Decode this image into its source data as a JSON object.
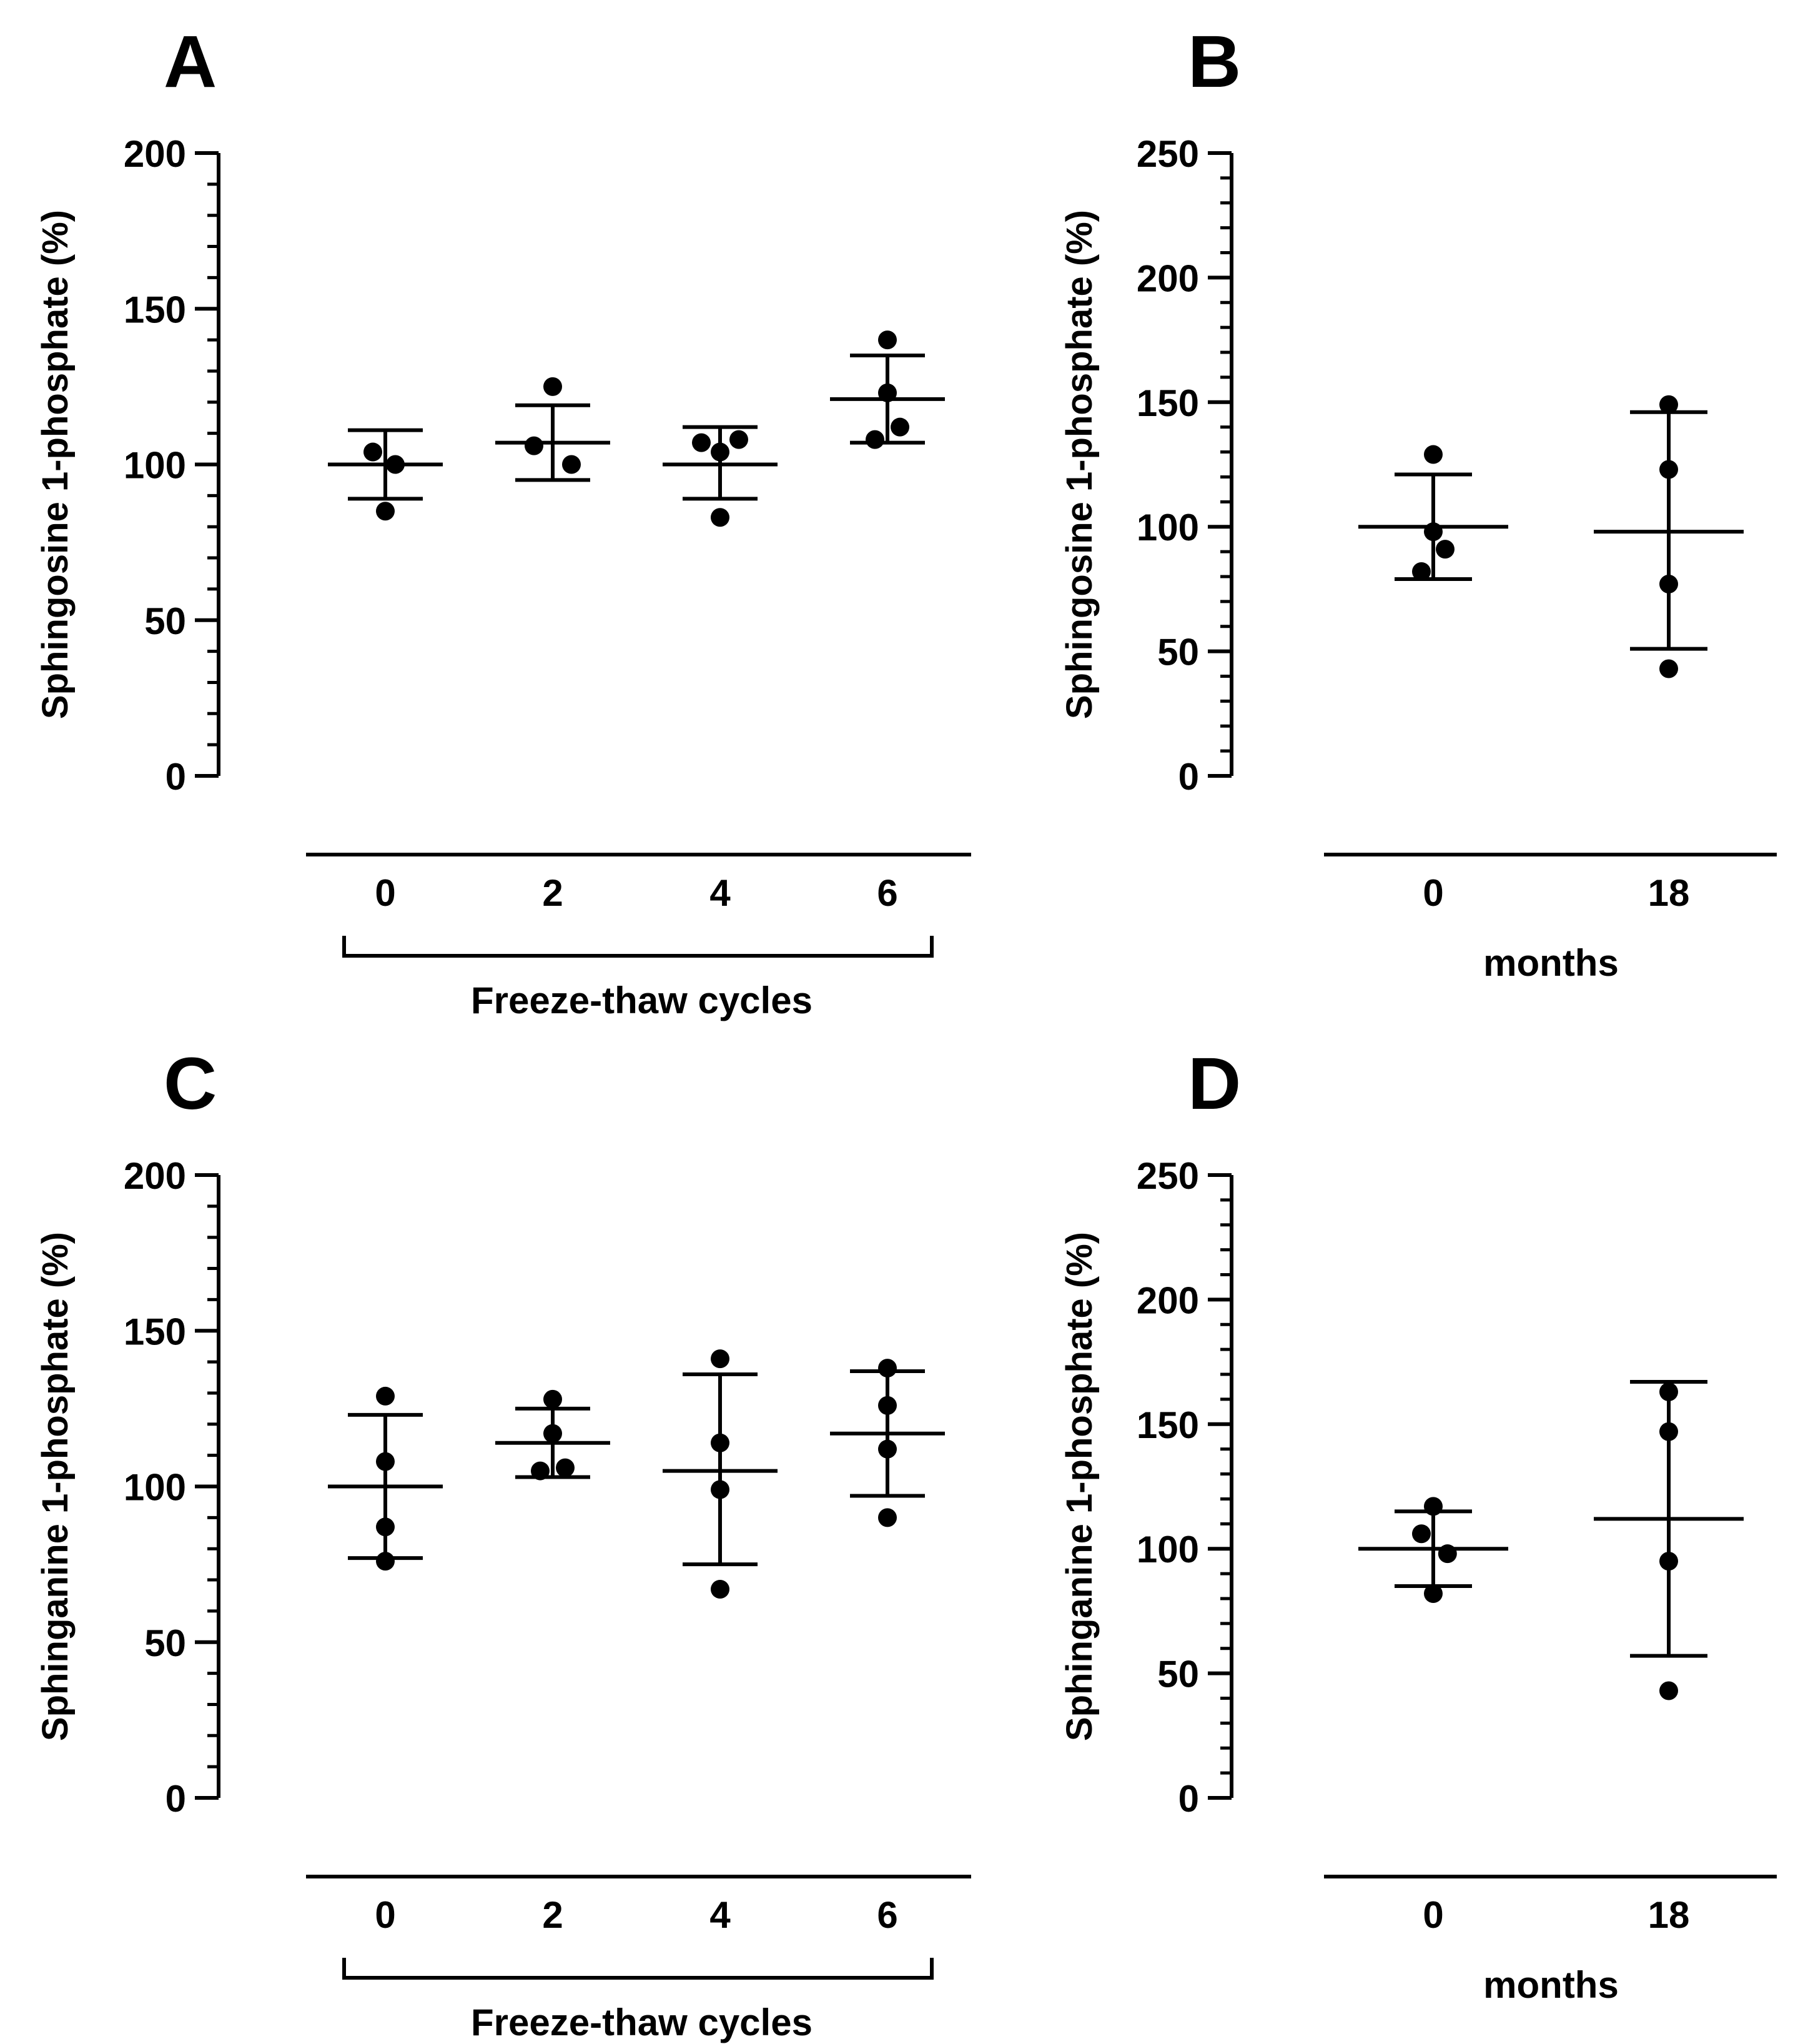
{
  "chart_data": [
    {
      "id": "A",
      "panel_label": "A",
      "type": "scatter",
      "ylabel": "Sphingosine 1-phosphate (%)",
      "xlabel": "Freeze-thaw cycles",
      "xlabel_style": "bracket",
      "ylim": [
        0,
        200
      ],
      "ymajor": [
        0,
        50,
        100,
        150,
        200
      ],
      "categories": [
        "0",
        "2",
        "4",
        "6"
      ],
      "groups": [
        {
          "mean": 100,
          "upper": 111,
          "lower": 89,
          "points": [
            [
              -0.1,
              104
            ],
            [
              0.08,
              100
            ],
            [
              0,
              85
            ]
          ]
        },
        {
          "mean": 107,
          "upper": 119,
          "lower": 95,
          "points": [
            [
              0,
              125
            ],
            [
              -0.15,
              106
            ],
            [
              0.15,
              100
            ]
          ]
        },
        {
          "mean": 100,
          "upper": 112,
          "lower": 89,
          "points": [
            [
              -0.15,
              107
            ],
            [
              0.15,
              108
            ],
            [
              0,
              104
            ],
            [
              0,
              83
            ]
          ]
        },
        {
          "mean": 121,
          "upper": 135,
          "lower": 107,
          "points": [
            [
              0,
              140
            ],
            [
              0,
              123
            ],
            [
              -0.1,
              108
            ],
            [
              0.1,
              112
            ]
          ]
        }
      ]
    },
    {
      "id": "B",
      "panel_label": "B",
      "type": "scatter",
      "ylabel": "Sphingosine 1-phosphate (%)",
      "xlabel": "months",
      "xlabel_style": "plain",
      "ylim": [
        0,
        250
      ],
      "ymajor": [
        0,
        50,
        100,
        150,
        200,
        250
      ],
      "categories": [
        "0",
        "18"
      ],
      "groups": [
        {
          "mean": 100,
          "upper": 121,
          "lower": 79,
          "points": [
            [
              0,
              129
            ],
            [
              0,
              98
            ],
            [
              0.1,
              91
            ],
            [
              -0.1,
              82
            ]
          ]
        },
        {
          "mean": 98,
          "upper": 146,
          "lower": 51,
          "points": [
            [
              0,
              149
            ],
            [
              0,
              123
            ],
            [
              0,
              77
            ],
            [
              0,
              43
            ]
          ]
        }
      ]
    },
    {
      "id": "C",
      "panel_label": "C",
      "type": "scatter",
      "ylabel": "Sphinganine 1-phosphate (%)",
      "xlabel": "Freeze-thaw cycles",
      "xlabel_style": "bracket",
      "ylim": [
        0,
        200
      ],
      "ymajor": [
        0,
        50,
        100,
        150,
        200
      ],
      "categories": [
        "0",
        "2",
        "4",
        "6"
      ],
      "groups": [
        {
          "mean": 100,
          "upper": 123,
          "lower": 77,
          "points": [
            [
              0,
              129
            ],
            [
              0,
              108
            ],
            [
              0,
              87
            ],
            [
              0,
              76
            ]
          ]
        },
        {
          "mean": 114,
          "upper": 125,
          "lower": 103,
          "points": [
            [
              0,
              128
            ],
            [
              0,
              117
            ],
            [
              -0.1,
              105
            ],
            [
              0.1,
              106
            ]
          ]
        },
        {
          "mean": 105,
          "upper": 136,
          "lower": 75,
          "points": [
            [
              0,
              141
            ],
            [
              0,
              114
            ],
            [
              0,
              99
            ],
            [
              0,
              67
            ]
          ]
        },
        {
          "mean": 117,
          "upper": 137,
          "lower": 97,
          "points": [
            [
              0,
              138
            ],
            [
              0,
              126
            ],
            [
              0,
              112
            ],
            [
              0,
              90
            ]
          ]
        }
      ]
    },
    {
      "id": "D",
      "panel_label": "D",
      "type": "scatter",
      "ylabel": "Sphinganine 1-phosphate (%)",
      "xlabel": "months",
      "xlabel_style": "plain",
      "ylim": [
        0,
        250
      ],
      "ymajor": [
        0,
        50,
        100,
        150,
        200,
        250
      ],
      "categories": [
        "0",
        "18"
      ],
      "groups": [
        {
          "mean": 100,
          "upper": 115,
          "lower": 85,
          "points": [
            [
              0,
              117
            ],
            [
              -0.1,
              106
            ],
            [
              0.12,
              98
            ],
            [
              0,
              82
            ]
          ]
        },
        {
          "mean": 112,
          "upper": 167,
          "lower": 57,
          "points": [
            [
              0,
              163
            ],
            [
              0,
              147
            ],
            [
              0,
              95
            ],
            [
              0,
              43
            ]
          ]
        }
      ]
    }
  ]
}
